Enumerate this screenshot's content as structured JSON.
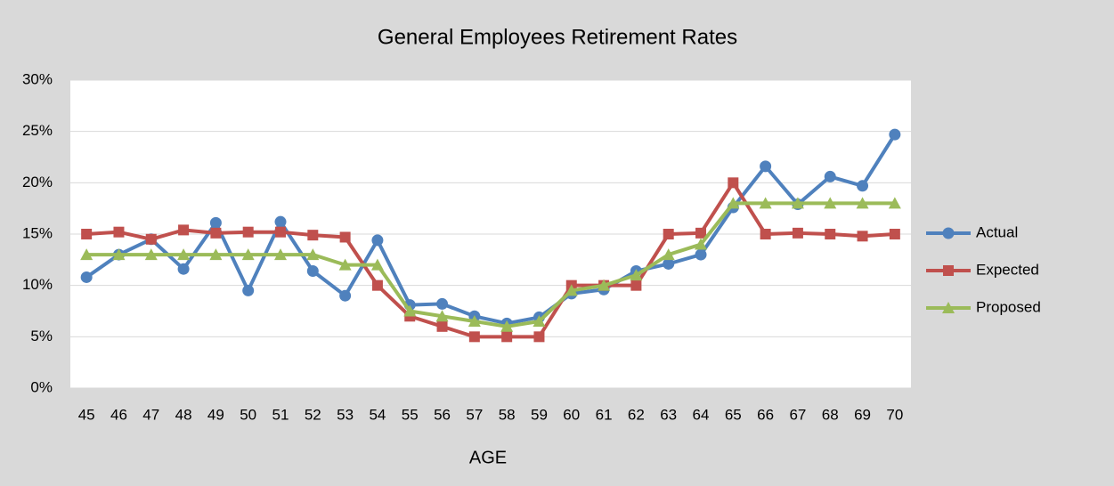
{
  "chart_data": {
    "type": "line",
    "title": "General Employees Retirement Rates",
    "x_label": "AGE",
    "categories": [
      "45",
      "46",
      "47",
      "48",
      "49",
      "50",
      "51",
      "52",
      "53",
      "54",
      "55",
      "56",
      "57",
      "58",
      "59",
      "60",
      "61",
      "62",
      "63",
      "64",
      "65",
      "66",
      "67",
      "68",
      "69",
      "70"
    ],
    "series": [
      {
        "name": "Actual",
        "color": "#4f81bd",
        "marker": "circle",
        "values": [
          10.8,
          13.0,
          14.5,
          11.6,
          16.1,
          9.5,
          16.2,
          11.4,
          9.0,
          14.4,
          8.1,
          8.2,
          7.0,
          6.3,
          6.9,
          9.2,
          9.6,
          11.4,
          12.1,
          13.0,
          17.6,
          21.6,
          17.9,
          20.6,
          19.7,
          24.7
        ]
      },
      {
        "name": "Expected",
        "color": "#c0504d",
        "marker": "square",
        "values": [
          15.0,
          15.2,
          14.5,
          15.4,
          15.1,
          15.2,
          15.2,
          14.9,
          14.7,
          10.0,
          7.0,
          6.0,
          5.0,
          5.0,
          5.0,
          10.0,
          10.0,
          10.0,
          15.0,
          15.1,
          20.0,
          15.0,
          15.1,
          15.0,
          14.8,
          15.0
        ]
      },
      {
        "name": "Proposed",
        "color": "#9bbb59",
        "marker": "triangle",
        "values": [
          13,
          13,
          13,
          13,
          13,
          13,
          13,
          13,
          12,
          12,
          7.5,
          7,
          6.5,
          6,
          6.5,
          9.5,
          10,
          11,
          13,
          14,
          18,
          18,
          18,
          18,
          18,
          18
        ]
      }
    ],
    "ylim": [
      0,
      30
    ],
    "yticks": [
      {
        "value": 0,
        "label": "0%"
      },
      {
        "value": 5,
        "label": "5%"
      },
      {
        "value": 10,
        "label": "10%"
      },
      {
        "value": 15,
        "label": "15%"
      },
      {
        "value": 20,
        "label": "20%"
      },
      {
        "value": 25,
        "label": "25%"
      },
      {
        "value": 30,
        "label": "30%"
      }
    ],
    "grid": true,
    "legend": "right"
  }
}
